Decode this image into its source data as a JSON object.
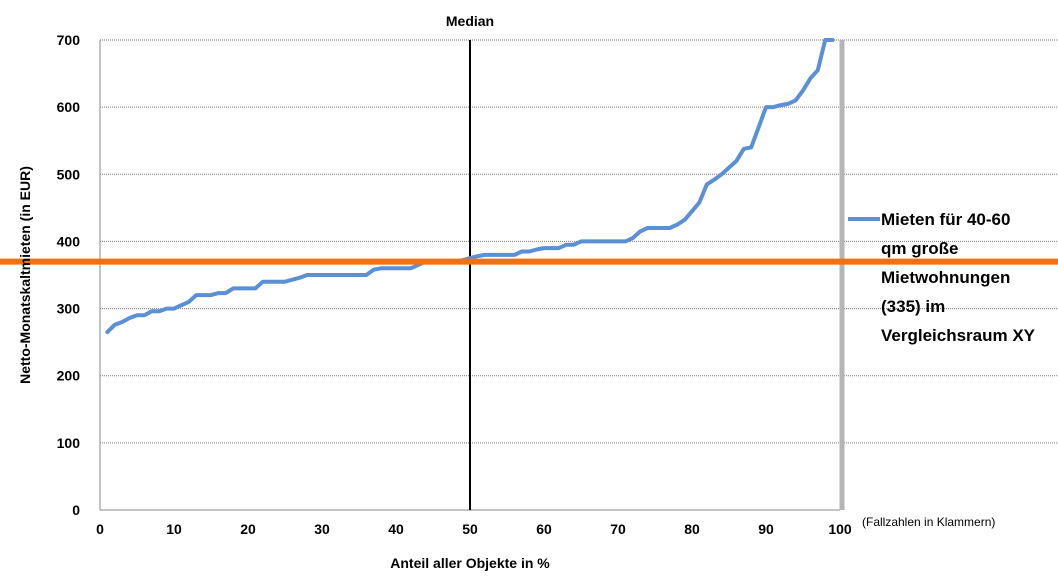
{
  "chart_data": {
    "type": "line",
    "ylabel": "Netto-Monatskaltmieten (in EUR)",
    "xlabel": "Anteil aller Objekte in %",
    "xlim": [
      0,
      100
    ],
    "ylim": [
      0,
      700
    ],
    "x_ticks": [
      "0",
      "10",
      "20",
      "30",
      "40",
      "50",
      "60",
      "70",
      "80",
      "90",
      "100"
    ],
    "y_ticks": [
      "0",
      "100",
      "200",
      "300",
      "400",
      "500",
      "600",
      "700"
    ],
    "grid": "horizontal",
    "legend_position": "right",
    "median_label": "Median",
    "median_x": 50,
    "reference_value": 370,
    "note": "(Fallzahlen in Klammern)",
    "series": [
      {
        "name": "Mieten für 40-60 qm große Mietwohnungen (335) im Vergleichsraum XY",
        "color": "#5b8fd6",
        "x": [
          1,
          2,
          3,
          4,
          5,
          6,
          7,
          8,
          9,
          10,
          11,
          12,
          13,
          14,
          15,
          16,
          17,
          18,
          19,
          20,
          21,
          22,
          23,
          24,
          25,
          26,
          27,
          28,
          29,
          30,
          31,
          32,
          33,
          34,
          35,
          36,
          37,
          38,
          39,
          40,
          41,
          42,
          43,
          44,
          45,
          46,
          47,
          48,
          49,
          50,
          51,
          52,
          53,
          54,
          55,
          56,
          57,
          58,
          59,
          60,
          61,
          62,
          63,
          64,
          65,
          66,
          67,
          68,
          69,
          70,
          71,
          72,
          73,
          74,
          75,
          76,
          77,
          78,
          79,
          80,
          81,
          82,
          83,
          84,
          85,
          86,
          87,
          88,
          89,
          90,
          91,
          92,
          93,
          94,
          95,
          96,
          97,
          98,
          99
        ],
        "y": [
          265,
          276,
          280,
          286,
          290,
          290,
          296,
          296,
          300,
          300,
          305,
          310,
          320,
          320,
          320,
          323,
          323,
          330,
          330,
          330,
          330,
          340,
          340,
          340,
          340,
          343,
          346,
          350,
          350,
          350,
          350,
          350,
          350,
          350,
          350,
          350,
          358,
          360,
          360,
          360,
          360,
          360,
          365,
          370,
          370,
          370,
          370,
          370,
          372,
          375,
          378,
          380,
          380,
          380,
          380,
          380,
          385,
          385,
          388,
          390,
          390,
          390,
          395,
          395,
          400,
          400,
          400,
          400,
          400,
          400,
          400,
          405,
          415,
          420,
          420,
          420,
          420,
          425,
          432,
          445,
          458,
          485,
          492,
          500,
          510,
          520,
          538,
          540,
          570,
          600,
          600,
          603,
          605,
          610,
          625,
          643,
          655,
          700,
          700
        ]
      }
    ]
  }
}
